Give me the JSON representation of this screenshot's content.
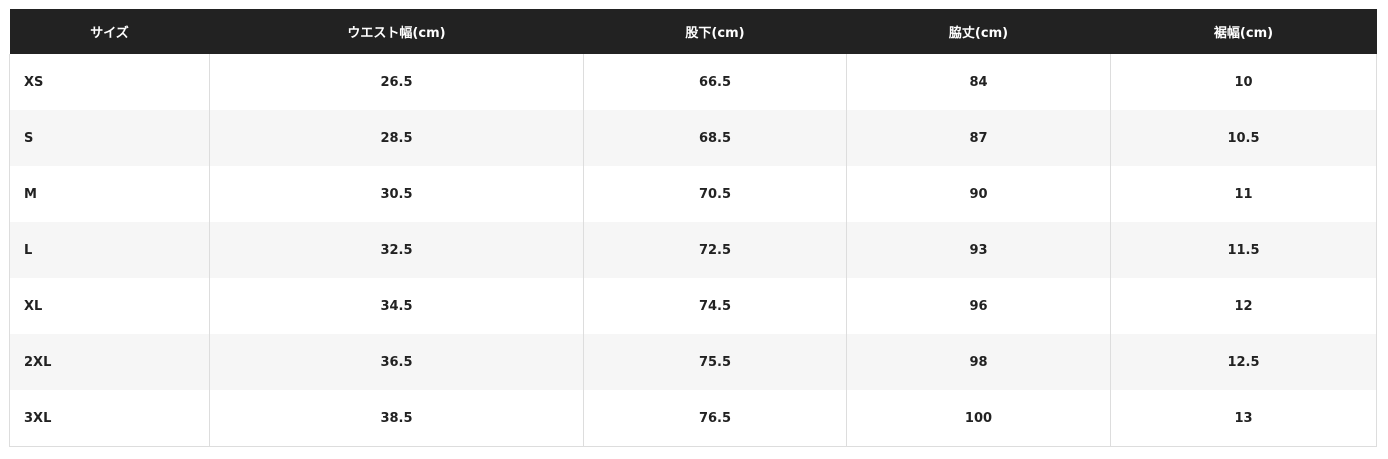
{
  "table": {
    "header": [
      "サイズ",
      "ウエスト幅(cm)",
      "股下(cm)",
      "脇丈(cm)",
      "裾幅(cm)"
    ],
    "rows": [
      [
        "XS",
        26.5,
        66.5,
        84,
        10
      ],
      [
        "S",
        28.5,
        68.5,
        87,
        10.5
      ],
      [
        "M",
        30.5,
        70.5,
        90,
        11
      ],
      [
        "L",
        32.5,
        72.5,
        93,
        11.5
      ],
      [
        "XL",
        34.5,
        74.5,
        96,
        12
      ],
      [
        "2XL",
        36.5,
        75.5,
        98,
        12.5
      ],
      [
        "3XL",
        38.5,
        76.5,
        100,
        13
      ]
    ]
  }
}
